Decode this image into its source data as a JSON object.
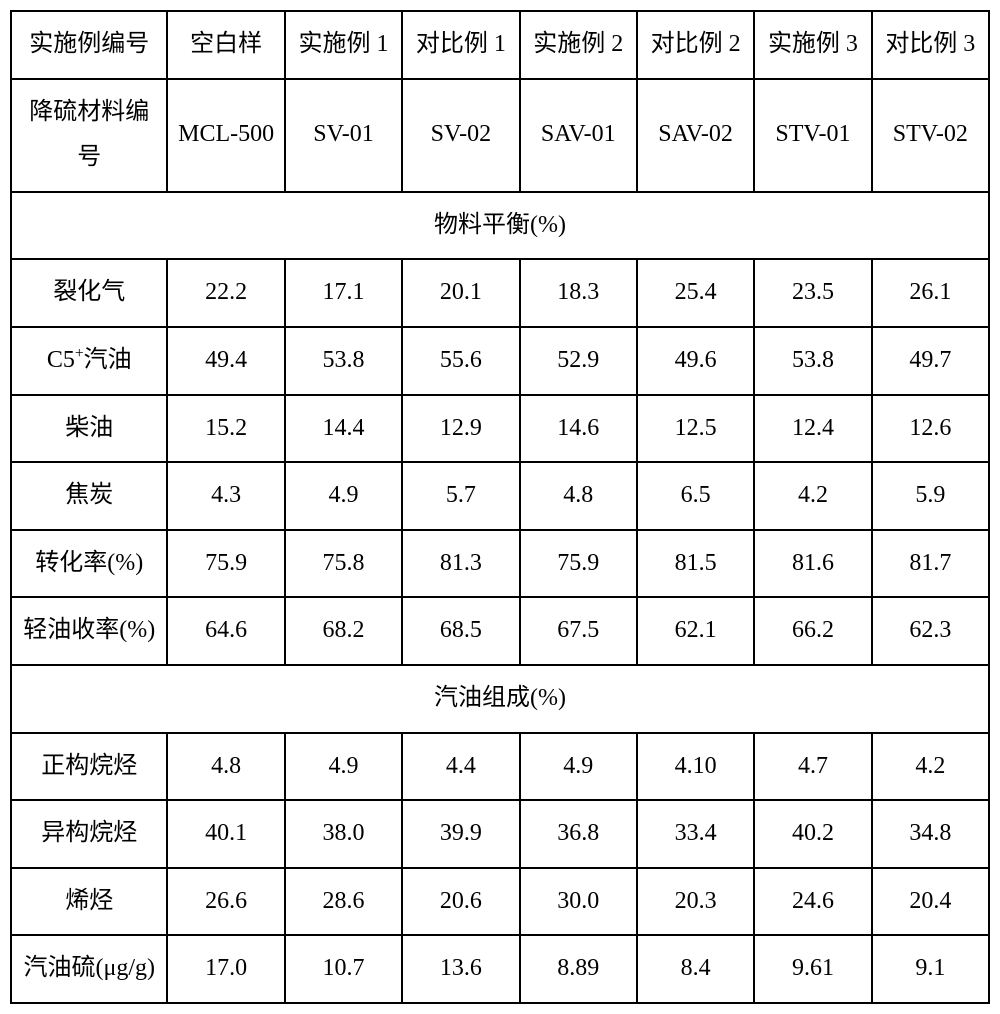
{
  "headers": {
    "rowLabel1": "实施例编号",
    "rowLabel2": "降硫材料编号",
    "cols": [
      {
        "top": "空白样",
        "code": "MCL-500"
      },
      {
        "top": "实施例 1",
        "code": "SV-01"
      },
      {
        "top": "对比例 1",
        "code": "SV-02"
      },
      {
        "top": "实施例 2",
        "code": "SAV-01"
      },
      {
        "top": "对比例 2",
        "code": "SAV-02"
      },
      {
        "top": "实施例 3",
        "code": "STV-01"
      },
      {
        "top": "对比例 3",
        "code": "STV-02"
      }
    ]
  },
  "section1": {
    "title": "物料平衡(%)",
    "rows": [
      {
        "label": "裂化气",
        "v": [
          "22.2",
          "17.1",
          "20.1",
          "18.3",
          "25.4",
          "23.5",
          "26.1"
        ]
      },
      {
        "label": "C5⁺汽油",
        "v": [
          "49.4",
          "53.8",
          "55.6",
          "52.9",
          "49.6",
          "53.8",
          "49.7"
        ]
      },
      {
        "label": "柴油",
        "v": [
          "15.2",
          "14.4",
          "12.9",
          "14.6",
          "12.5",
          "12.4",
          "12.6"
        ]
      },
      {
        "label": "焦炭",
        "v": [
          "4.3",
          "4.9",
          "5.7",
          "4.8",
          "6.5",
          "4.2",
          "5.9"
        ]
      },
      {
        "label": "转化率(%)",
        "v": [
          "75.9",
          "75.8",
          "81.3",
          "75.9",
          "81.5",
          "81.6",
          "81.7"
        ]
      },
      {
        "label": "轻油收率(%)",
        "v": [
          "64.6",
          "68.2",
          "68.5",
          "67.5",
          "62.1",
          "66.2",
          "62.3"
        ]
      }
    ]
  },
  "section2": {
    "title": "汽油组成(%)",
    "rows": [
      {
        "label": "正构烷烃",
        "v": [
          "4.8",
          "4.9",
          "4.4",
          "4.9",
          "4.10",
          "4.7",
          "4.2"
        ]
      },
      {
        "label": "异构烷烃",
        "v": [
          "40.1",
          "38.0",
          "39.9",
          "36.8",
          "33.4",
          "40.2",
          "34.8"
        ]
      },
      {
        "label": "烯烃",
        "v": [
          "26.6",
          "28.6",
          "20.6",
          "30.0",
          "20.3",
          "24.6",
          "20.4"
        ]
      },
      {
        "label": "汽油硫(μg/g)",
        "v": [
          "17.0",
          "10.7",
          "13.6",
          "8.89",
          "8.4",
          "9.61",
          "9.1"
        ]
      }
    ]
  }
}
